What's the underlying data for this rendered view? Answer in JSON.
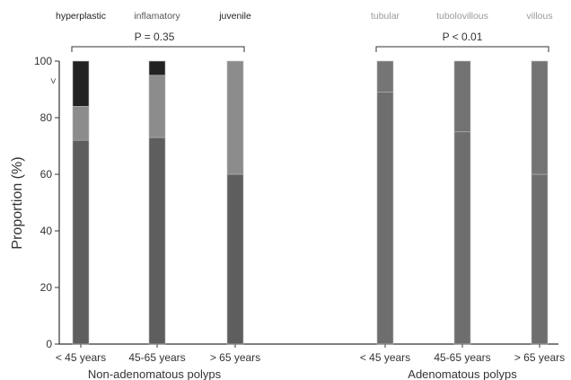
{
  "chart_data": {
    "type": "bar",
    "stacked": true,
    "ylabel": "Proportion (%)",
    "ylim": [
      0,
      100
    ],
    "yticks": [
      0,
      20,
      40,
      60,
      80,
      100
    ],
    "y_marker": "<",
    "grid": false,
    "groups": [
      {
        "name": "Non-adenomatous polyps",
        "p_value": "P = 0.35",
        "legend": [
          {
            "name": "hyperplastic",
            "color": "#5e5e5e",
            "text_color": "#222222"
          },
          {
            "name": "inflamatory",
            "color": "#8c8c8c",
            "text_color": "#555555"
          },
          {
            "name": "juvenile",
            "color": "#222222",
            "text_color": "#222222"
          }
        ],
        "categories": [
          "< 45 years",
          "45-65 years",
          "> 65 years"
        ],
        "bars": [
          [
            {
              "series": "hyperplastic",
              "from": 0,
              "to": 72,
              "color": "#5e5e5e"
            },
            {
              "series": "inflamatory",
              "from": 72,
              "to": 84,
              "color": "#8c8c8c"
            },
            {
              "series": "juvenile",
              "from": 84,
              "to": 100,
              "color": "#222222"
            }
          ],
          [
            {
              "series": "hyperplastic",
              "from": 0,
              "to": 73,
              "color": "#5e5e5e"
            },
            {
              "series": "inflamatory",
              "from": 73,
              "to": 95,
              "color": "#8c8c8c"
            },
            {
              "series": "juvenile",
              "from": 95,
              "to": 100,
              "color": "#222222"
            }
          ],
          [
            {
              "series": "hyperplastic",
              "from": 0,
              "to": 60,
              "color": "#5e5e5e"
            },
            {
              "series": "inflamatory",
              "from": 60,
              "to": 100,
              "color": "#8c8c8c"
            }
          ]
        ]
      },
      {
        "name": "Adenomatous polyps",
        "p_value": "P < 0.01",
        "legend": [
          {
            "name": "tubular",
            "color": "#6e6e6e",
            "text_color": "#9a9a9a"
          },
          {
            "name": "tubolovillous",
            "color": "#747474",
            "text_color": "#9a9a9a"
          },
          {
            "name": "villous",
            "color": "#7a7a7a",
            "text_color": "#9a9a9a"
          }
        ],
        "categories": [
          "< 45 years",
          "45-65 years",
          "> 65 years"
        ],
        "bars": [
          [
            {
              "series": "tubular",
              "from": 0,
              "to": 89,
              "color": "#6e6e6e"
            },
            {
              "series": "tubolovillous",
              "from": 89,
              "to": 100,
              "color": "#757575"
            }
          ],
          [
            {
              "series": "tubular",
              "from": 0,
              "to": 75,
              "color": "#6e6e6e"
            },
            {
              "series": "tubolovillous",
              "from": 75,
              "to": 100,
              "color": "#727272"
            }
          ],
          [
            {
              "series": "tubular",
              "from": 0,
              "to": 60,
              "color": "#6e6e6e"
            },
            {
              "series": "tubolovillous",
              "from": 60,
              "to": 100,
              "color": "#747474"
            }
          ]
        ]
      }
    ]
  }
}
